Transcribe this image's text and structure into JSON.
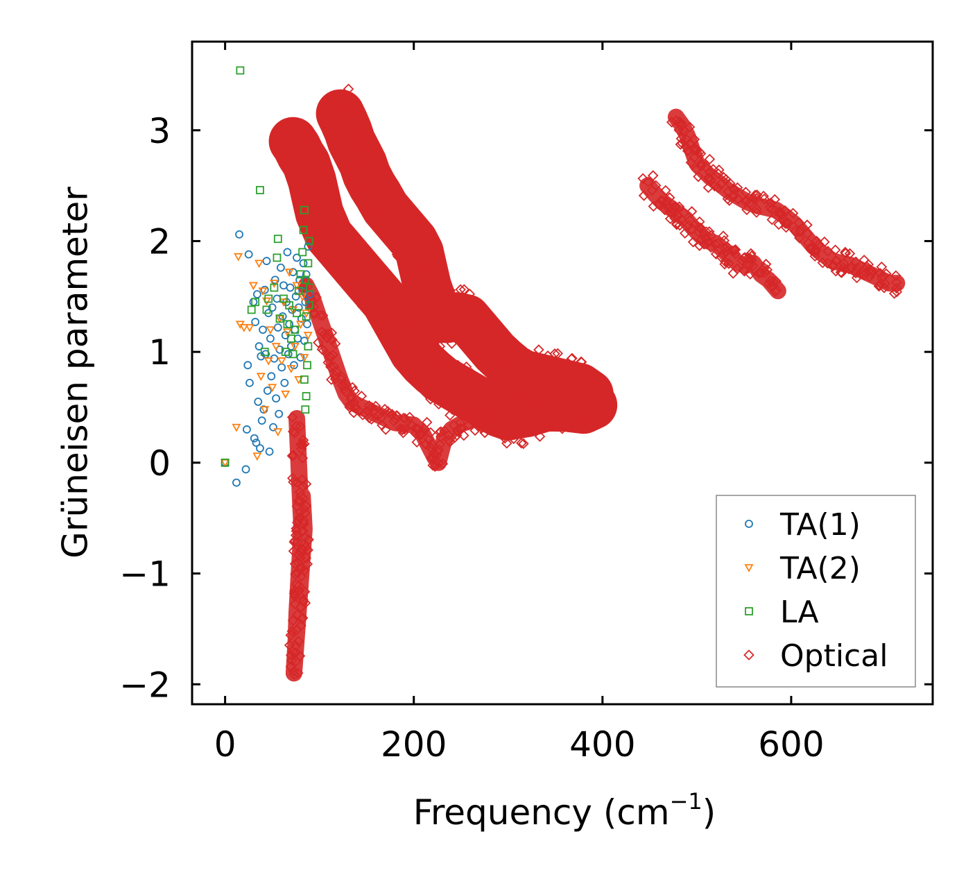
{
  "chart_data": {
    "type": "scatter",
    "title": "",
    "xlabel": "Frequency (cm",
    "xlabel_sup": "−1",
    "xlabel_close": ")",
    "ylabel": "Grüneisen parameter",
    "xlim": [
      -35,
      750
    ],
    "ylim": [
      -2.18,
      3.8
    ],
    "x_ticks": [
      0,
      200,
      400,
      600
    ],
    "x_tick_labels": [
      "0",
      "200",
      "400",
      "600"
    ],
    "y_ticks": [
      -2,
      -1,
      0,
      1,
      2,
      3
    ],
    "y_tick_labels": [
      "−2",
      "−1",
      "0",
      "1",
      "2",
      "3"
    ],
    "grid": false,
    "legend_position": "lower-right",
    "series": [
      {
        "name": "TA(1)",
        "marker": "circle",
        "color": "#1f77b4",
        "points": [
          [
            0,
            0
          ],
          [
            12,
            -0.18
          ],
          [
            15,
            2.06
          ],
          [
            22,
            -0.06
          ],
          [
            23,
            0.3
          ],
          [
            24,
            0.88
          ],
          [
            25,
            1.88
          ],
          [
            26,
            0.72
          ],
          [
            30,
            1.45
          ],
          [
            31,
            0.22
          ],
          [
            32,
            1.27
          ],
          [
            33,
            0.18
          ],
          [
            34,
            1.52
          ],
          [
            35,
            0.55
          ],
          [
            36,
            1.05
          ],
          [
            37,
            0.13
          ],
          [
            38,
            0.96
          ],
          [
            39,
            0.38
          ],
          [
            40,
            1.2
          ],
          [
            41,
            0.48
          ],
          [
            42,
            1.56
          ],
          [
            43,
            0.98
          ],
          [
            44,
            1.82
          ],
          [
            45,
            0.65
          ],
          [
            46,
            1.35
          ],
          [
            47,
            0.1
          ],
          [
            48,
            1.12
          ],
          [
            49,
            0.78
          ],
          [
            50,
            1.4
          ],
          [
            51,
            0.32
          ],
          [
            52,
            0.94
          ],
          [
            53,
            1.65
          ],
          [
            54,
            0.58
          ],
          [
            55,
            1.48
          ],
          [
            56,
            1.22
          ],
          [
            57,
            0.44
          ],
          [
            58,
            1.02
          ],
          [
            59,
            1.76
          ],
          [
            60,
            0.86
          ],
          [
            61,
            1.32
          ],
          [
            62,
            1.6
          ],
          [
            63,
            0.72
          ],
          [
            64,
            1.15
          ],
          [
            65,
            1.45
          ],
          [
            66,
            1.9
          ],
          [
            67,
            0.98
          ],
          [
            68,
            1.25
          ],
          [
            69,
            1.58
          ],
          [
            70,
            1.05
          ],
          [
            71,
            1.38
          ],
          [
            72,
            1.72
          ],
          [
            73,
            0.88
          ],
          [
            74,
            1.2
          ],
          [
            75,
            1.5
          ],
          [
            76,
            1.85
          ],
          [
            77,
            1.12
          ],
          [
            78,
            1.4
          ],
          [
            79,
            1.65
          ],
          [
            80,
            0.95
          ],
          [
            81,
            1.3
          ],
          [
            82,
            1.55
          ],
          [
            83,
            1.8
          ],
          [
            84,
            1.1
          ],
          [
            85,
            1.45
          ],
          [
            86,
            1.7
          ],
          [
            87,
            1.25
          ],
          [
            88,
            1.95
          ],
          [
            90,
            1.52
          ]
        ]
      },
      {
        "name": "TA(2)",
        "marker": "triangle-down",
        "color": "#ff7f0e",
        "points": [
          [
            0,
            0
          ],
          [
            12,
            0.32
          ],
          [
            14,
            1.86
          ],
          [
            16,
            1.25
          ],
          [
            20,
            1.22
          ],
          [
            26,
            1.22
          ],
          [
            30,
            1.6
          ],
          [
            34,
            0.06
          ],
          [
            36,
            1.8
          ],
          [
            38,
            0.78
          ],
          [
            40,
            1.55
          ],
          [
            42,
            0.48
          ],
          [
            44,
            1.46
          ],
          [
            46,
            0.92
          ],
          [
            48,
            1.2
          ],
          [
            50,
            0.68
          ],
          [
            52,
            1.62
          ],
          [
            54,
            1.05
          ],
          [
            56,
            0.28
          ],
          [
            58,
            1.3
          ],
          [
            60,
            0.92
          ],
          [
            62,
            1.45
          ],
          [
            64,
            0.62
          ],
          [
            66,
            1.18
          ],
          [
            68,
            1.72
          ],
          [
            70,
            0.85
          ],
          [
            72,
            1.38
          ],
          [
            74,
            1.05
          ],
          [
            76,
            1.6
          ],
          [
            78,
            0.75
          ],
          [
            80,
            1.25
          ],
          [
            82,
            1.5
          ],
          [
            84,
            0.95
          ],
          [
            86,
            1.35
          ],
          [
            88,
            1.15
          ]
        ]
      },
      {
        "name": "LA",
        "marker": "square",
        "color": "#2ca02c",
        "points": [
          [
            0,
            0
          ],
          [
            16,
            3.54
          ],
          [
            28,
            1.38
          ],
          [
            32,
            1.45
          ],
          [
            37,
            2.46
          ],
          [
            42,
            1.0
          ],
          [
            44,
            1.38
          ],
          [
            46,
            1.48
          ],
          [
            52,
            1.58
          ],
          [
            55,
            1.85
          ],
          [
            56,
            2.02
          ],
          [
            58,
            1.3
          ],
          [
            62,
            1.48
          ],
          [
            64,
            1.0
          ],
          [
            66,
            1.25
          ],
          [
            68,
            1.42
          ],
          [
            70,
            1.12
          ],
          [
            72,
            0.98
          ],
          [
            74,
            1.2
          ],
          [
            76,
            1.35
          ],
          [
            78,
            1.55
          ],
          [
            80,
            1.7
          ],
          [
            82,
            1.9
          ],
          [
            83,
            2.1
          ],
          [
            84,
            2.28
          ],
          [
            85,
            1.65
          ],
          [
            86,
            0.6
          ],
          [
            87,
            0.88
          ],
          [
            88,
            1.05
          ],
          [
            89,
            1.42
          ],
          [
            90,
            1.58
          ],
          [
            85,
            0.48
          ],
          [
            84,
            0.75
          ],
          [
            86,
            1.32
          ],
          [
            88,
            1.8
          ],
          [
            89,
            2.0
          ]
        ]
      },
      {
        "name": "Optical",
        "marker": "diamond",
        "color": "#d62728",
        "curves": [
          [
            [
              72,
              2.9
            ],
            [
              76,
              2.85
            ],
            [
              80,
              2.78
            ],
            [
              86,
              2.7
            ],
            [
              92,
              2.55
            ],
            [
              96,
              2.4
            ],
            [
              100,
              2.25
            ],
            [
              105,
              2.15
            ],
            [
              110,
              2.05
            ],
            [
              120,
              1.95
            ],
            [
              130,
              1.85
            ],
            [
              140,
              1.75
            ],
            [
              150,
              1.65
            ],
            [
              160,
              1.55
            ],
            [
              170,
              1.45
            ],
            [
              180,
              1.3
            ],
            [
              190,
              1.15
            ],
            [
              200,
              1.0
            ],
            [
              210,
              0.9
            ],
            [
              220,
              0.82
            ],
            [
              230,
              0.75
            ],
            [
              240,
              0.7
            ],
            [
              250,
              0.65
            ],
            [
              260,
              0.6
            ],
            [
              270,
              0.55
            ],
            [
              280,
              0.5
            ],
            [
              290,
              0.45
            ],
            [
              300,
              0.42
            ],
            [
              320,
              0.45
            ],
            [
              340,
              0.5
            ],
            [
              360,
              0.5
            ],
            [
              380,
              0.48
            ],
            [
              390,
              0.52
            ]
          ],
          [
            [
              122,
              3.15
            ],
            [
              126,
              3.08
            ],
            [
              130,
              3.0
            ],
            [
              134,
              2.9
            ],
            [
              140,
              2.8
            ],
            [
              146,
              2.7
            ],
            [
              150,
              2.6
            ],
            [
              156,
              2.5
            ],
            [
              162,
              2.42
            ],
            [
              170,
              2.3
            ],
            [
              180,
              2.2
            ],
            [
              190,
              2.1
            ],
            [
              200,
              2.0
            ],
            [
              206,
              1.9
            ],
            [
              210,
              1.75
            ],
            [
              214,
              1.6
            ],
            [
              220,
              1.45
            ],
            [
              226,
              1.3
            ],
            [
              236,
              1.3
            ],
            [
              246,
              1.32
            ],
            [
              256,
              1.3
            ],
            [
              266,
              1.2
            ],
            [
              276,
              1.1
            ],
            [
              286,
              1.0
            ],
            [
              296,
              0.92
            ],
            [
              306,
              0.85
            ],
            [
              316,
              0.8
            ],
            [
              326,
              0.78
            ],
            [
              336,
              0.76
            ],
            [
              346,
              0.74
            ],
            [
              356,
              0.72
            ],
            [
              366,
              0.7
            ],
            [
              376,
              0.68
            ],
            [
              386,
              0.62
            ]
          ],
          [
            [
              86,
              1.6
            ],
            [
              92,
              1.5
            ],
            [
              98,
              1.35
            ],
            [
              104,
              1.2
            ],
            [
              110,
              1.05
            ],
            [
              116,
              0.9
            ],
            [
              122,
              0.75
            ],
            [
              128,
              0.62
            ],
            [
              134,
              0.55
            ],
            [
              140,
              0.52
            ],
            [
              150,
              0.48
            ],
            [
              160,
              0.44
            ],
            [
              170,
              0.4
            ],
            [
              180,
              0.36
            ],
            [
              190,
              0.35
            ],
            [
              200,
              0.34
            ],
            [
              210,
              0.25
            ],
            [
              216,
              0.15
            ],
            [
              222,
              0.05
            ],
            [
              226,
              0.0
            ],
            [
              232,
              0.2
            ],
            [
              240,
              0.3
            ],
            [
              250,
              0.35
            ],
            [
              260,
              0.38
            ],
            [
              270,
              0.4
            ],
            [
              280,
              0.42
            ]
          ],
          [
            [
              76,
              0.4
            ],
            [
              77,
              0.2
            ],
            [
              78,
              0.0
            ],
            [
              79,
              -0.2
            ],
            [
              80,
              -0.4
            ],
            [
              81,
              -0.55
            ],
            [
              80,
              -0.75
            ],
            [
              79,
              -0.9
            ],
            [
              78,
              -1.05
            ],
            [
              77,
              -1.2
            ],
            [
              76,
              -1.35
            ],
            [
              75,
              -1.6
            ],
            [
              74,
              -1.75
            ],
            [
              73,
              -1.9
            ],
            [
              84,
              -0.6
            ],
            [
              82,
              -0.3
            ],
            [
              80,
              -1.0
            ],
            [
              78,
              -1.3
            ]
          ],
          [
            [
              448,
              2.5
            ],
            [
              456,
              2.42
            ],
            [
              464,
              2.35
            ],
            [
              472,
              2.3
            ],
            [
              480,
              2.25
            ],
            [
              488,
              2.2
            ],
            [
              496,
              2.12
            ],
            [
              504,
              2.05
            ],
            [
              512,
              2.0
            ],
            [
              520,
              1.98
            ],
            [
              528,
              1.92
            ],
            [
              536,
              1.85
            ],
            [
              544,
              1.8
            ],
            [
              552,
              1.78
            ],
            [
              560,
              1.8
            ],
            [
              568,
              1.7
            ],
            [
              576,
              1.65
            ],
            [
              586,
              1.55
            ]
          ],
          [
            [
              478,
              3.12
            ],
            [
              484,
              3.05
            ],
            [
              490,
              2.95
            ],
            [
              496,
              2.8
            ],
            [
              500,
              2.7
            ],
            [
              506,
              2.65
            ],
            [
              514,
              2.58
            ],
            [
              524,
              2.52
            ],
            [
              534,
              2.45
            ],
            [
              544,
              2.4
            ],
            [
              554,
              2.35
            ],
            [
              564,
              2.32
            ],
            [
              574,
              2.3
            ],
            [
              584,
              2.28
            ],
            [
              594,
              2.22
            ],
            [
              604,
              2.15
            ],
            [
              614,
              2.05
            ],
            [
              624,
              1.95
            ],
            [
              634,
              1.88
            ],
            [
              644,
              1.82
            ],
            [
              654,
              1.8
            ],
            [
              664,
              1.78
            ],
            [
              674,
              1.74
            ],
            [
              684,
              1.7
            ],
            [
              694,
              1.66
            ],
            [
              704,
              1.62
            ],
            [
              712,
              1.62
            ]
          ]
        ]
      }
    ]
  }
}
